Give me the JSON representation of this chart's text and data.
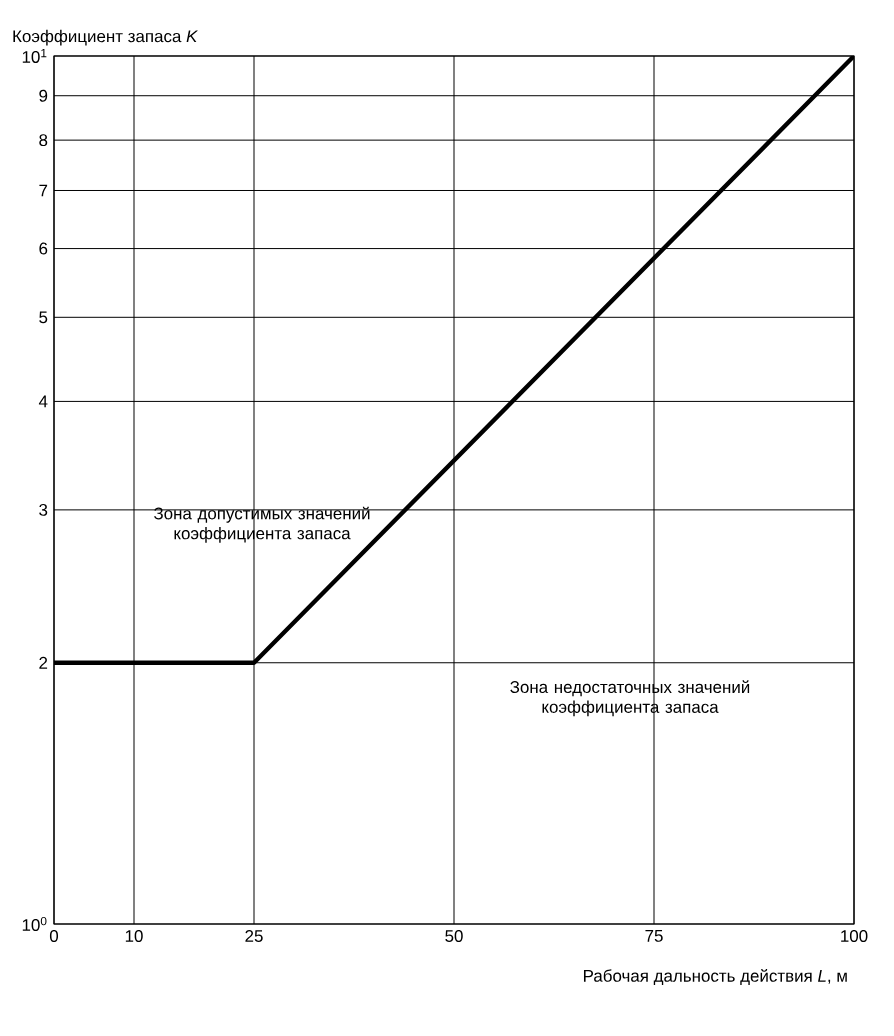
{
  "chart_data": {
    "type": "line",
    "xlabel": "Рабочая дальность действия *L*, м",
    "ylabel": "Коэффициент запаса *K*",
    "x": [
      0,
      25,
      100
    ],
    "series": [
      {
        "color": "#000000",
        "values": [
          2,
          2,
          10
        ]
      }
    ],
    "log": "y",
    "grid": true,
    "line_style": "solid",
    "xlim": [
      0,
      100
    ],
    "xticks": [
      0,
      10,
      25,
      50,
      75,
      100
    ],
    "ylim": [
      1,
      10
    ],
    "yticks": [
      {
        "value": 1,
        "label": "10$^{0}$"
      },
      2,
      3,
      4,
      5,
      6,
      7,
      8,
      9,
      {
        "value": 10,
        "label": "10$^{1}$"
      }
    ],
    "annotations": [
      "Зона допустимых значений коэффициента запаса",
      "Зона недостаточных значений коэффициента запаса"
    ]
  }
}
